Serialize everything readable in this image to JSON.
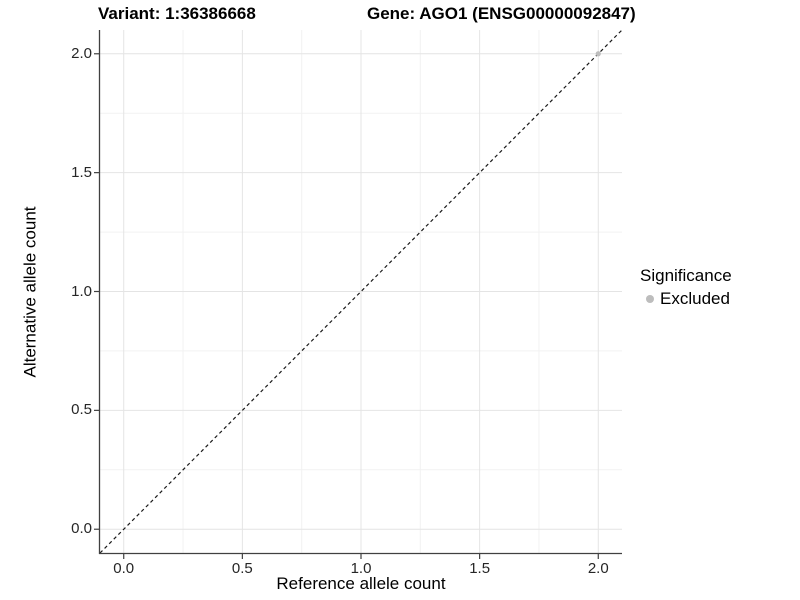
{
  "chart_data": {
    "type": "scatter",
    "title_variant": "Variant: 1:36386668",
    "title_gene": "Gene: AGO1 (ENSG00000092847)",
    "xlabel": "Reference allele count",
    "ylabel": "Alternative allele count",
    "x_ticks": [
      "0.0",
      "0.5",
      "1.0",
      "1.5",
      "2.0"
    ],
    "y_ticks": [
      "0.0",
      "0.5",
      "1.0",
      "1.5",
      "2.0"
    ],
    "xlim": [
      -0.1,
      2.1
    ],
    "ylim": [
      -0.1,
      2.1
    ],
    "grid": "major+minor",
    "legend_position": "right",
    "reference_line": {
      "type": "identity",
      "style": "dashed",
      "color": "#1a1a1a"
    },
    "points": [
      {
        "x": 2.0,
        "y": 2.0,
        "series": "Excluded"
      }
    ],
    "legend": {
      "title": "Significance",
      "items": [
        {
          "label": "Excluded",
          "color": "#bdbdbd"
        }
      ]
    },
    "colors": {
      "grid_major": "#e4e4e4",
      "grid_minor": "#f2f2f2",
      "axis_line": "#404040",
      "point": "#bdbdbd",
      "tick_label": "#262626"
    }
  }
}
